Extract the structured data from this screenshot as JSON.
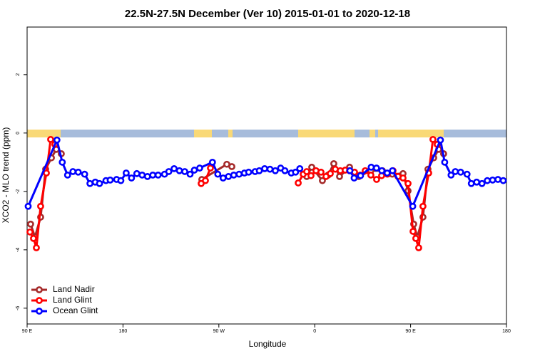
{
  "chart_data": {
    "type": "line",
    "title": "22.5N-27.5N December (Ver 10)   2015-01-01 to 2020-12-18",
    "x_label": "Longitude",
    "y_label": "XCO2 - MLO trend (ppm)",
    "xlim": [
      90,
      540
    ],
    "ylim": [
      -6.54,
      3.63
    ],
    "xticks": [
      {
        "value": 90,
        "label": "90 E"
      },
      180,
      {
        "value": 270,
        "label": "90 W"
      },
      {
        "value": 360,
        "label": "0"
      },
      {
        "value": 450,
        "label": "90 E"
      },
      {
        "value": 540,
        "label": "180"
      }
    ],
    "yticks": [
      -6,
      -4,
      -2,
      0,
      2
    ],
    "legend": "bottom-left",
    "series": [
      {
        "name": "Land Nadir",
        "color": "#a52a2a",
        "x": [
          93.3,
          97.4,
          102.7,
          107.4,
          112.8,
          117.4,
          122.1,
          188,
          254,
          277.5,
          282.2,
          320,
          352.5,
          357.2,
          367.2,
          372.6,
          377.9,
          383.3,
          392.7,
          401.4,
          412.7,
          423.5,
          432.8,
          442.9,
          447.6,
          452.9,
          456.3,
          461.6,
          466.3,
          471.7,
          476.4,
          481
        ],
        "values": [
          -3.12,
          -3.56,
          -2.88,
          -1.24,
          -0.85,
          -0.56,
          -0.71,
          null,
          -1.59,
          -1.07,
          -1.15,
          null,
          -1.49,
          -1.17,
          -1.63,
          -1.44,
          -1.05,
          -1.49,
          -1.17,
          -1.49,
          -1.29,
          -1.29,
          -1.41,
          -1.39,
          -1.98,
          -3.12,
          -3.56,
          -2.88,
          -1.24,
          -0.85,
          -0.56,
          -0.71
        ]
      },
      {
        "name": "Land Glint",
        "color": "#ff0000",
        "x": [
          92.7,
          96,
          98.7,
          102.7,
          108.1,
          112.1,
          116.1,
          185,
          253.4,
          257.4,
          262.1,
          300,
          344.5,
          349.2,
          352.5,
          356.5,
          361.2,
          365.9,
          370.6,
          374.6,
          379.3,
          384,
          388.6,
          392.7,
          397.4,
          402.7,
          407.4,
          412.7,
          418.1,
          422.8,
          428.2,
          433.5,
          438.2,
          442.9,
          447.6,
          452.3,
          454.9,
          457.6,
          461.6,
          467,
          471,
          475
        ],
        "values": [
          -3.39,
          -3.61,
          -3.93,
          -2.51,
          -1.37,
          -0.22,
          -0.39,
          null,
          -1.73,
          -1.63,
          -1.2,
          null,
          -1.71,
          -1.41,
          -1.32,
          -1.46,
          -1.29,
          -1.34,
          -1.49,
          -1.39,
          -1.24,
          -1.29,
          -1.27,
          -1.29,
          -1.34,
          -1.44,
          -1.29,
          -1.44,
          -1.59,
          -1.46,
          -1.41,
          -1.29,
          -1.49,
          -1.54,
          -1.73,
          -3.37,
          -3.61,
          -3.93,
          -2.51,
          -1.37,
          -0.22,
          -0.39
        ]
      },
      {
        "name": "Ocean Glint",
        "color": "#0000ff",
        "x": [
          91,
          118,
          123,
          128,
          133,
          138,
          144,
          149,
          154,
          158,
          164,
          168,
          174,
          178,
          183,
          188,
          193,
          198,
          203,
          208,
          213,
          219,
          223,
          228,
          233,
          238,
          243,
          247,
          252,
          264,
          269,
          274,
          279,
          284,
          289,
          294,
          298,
          304,
          308,
          313,
          318,
          323,
          328,
          332,
          338,
          342,
          346,
          370,
          393,
          397,
          403,
          413,
          418,
          423,
          428,
          433,
          452,
          478,
          482,
          488,
          492,
          497,
          503,
          507,
          512,
          517,
          522,
          527,
          532,
          537
        ],
        "values": [
          -2.51,
          -0.24,
          -1.0,
          -1.44,
          -1.32,
          -1.34,
          -1.41,
          -1.73,
          -1.68,
          -1.73,
          -1.63,
          -1.61,
          -1.59,
          -1.63,
          -1.37,
          -1.54,
          -1.39,
          -1.44,
          -1.49,
          -1.44,
          -1.44,
          -1.41,
          -1.32,
          -1.22,
          -1.29,
          -1.32,
          -1.41,
          -1.27,
          -1.2,
          -1.0,
          -1.41,
          -1.54,
          -1.49,
          -1.44,
          -1.41,
          -1.37,
          -1.34,
          -1.32,
          -1.29,
          -1.22,
          -1.24,
          -1.29,
          -1.2,
          -1.29,
          -1.37,
          -1.34,
          -1.22,
          null,
          -1.29,
          -1.54,
          -1.46,
          -1.17,
          -1.2,
          -1.29,
          -1.37,
          -1.29,
          -2.51,
          -0.24,
          -1.0,
          -1.44,
          -1.32,
          -1.34,
          -1.41,
          -1.73,
          -1.68,
          -1.73,
          -1.63,
          -1.61,
          -1.59,
          -1.63
        ]
      }
    ]
  }
}
